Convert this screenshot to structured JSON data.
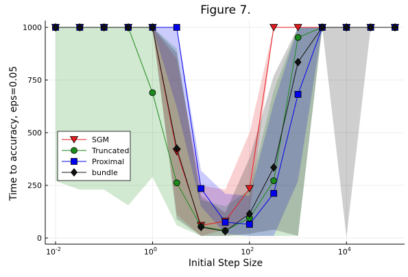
{
  "chart_data": {
    "type": "line",
    "title": "Figure 7.",
    "xlabel": "Initial Step Size",
    "ylabel": "Time to accuracy, eps=0.05",
    "xscale": "log",
    "xlim": [
      0.01,
      100000
    ],
    "ylim": [
      0,
      1000
    ],
    "x_ticks": [
      {
        "base": "10",
        "exp": "-2",
        "value": 0.01
      },
      {
        "base": "10",
        "exp": "0",
        "value": 1
      },
      {
        "base": "10",
        "exp": "2",
        "value": 100
      },
      {
        "base": "10",
        "exp": "4",
        "value": 10000
      }
    ],
    "y_ticks": [
      {
        "label": "0",
        "value": 0
      },
      {
        "label": "250",
        "value": 250
      },
      {
        "label": "500",
        "value": 500
      },
      {
        "label": "750",
        "value": 750
      },
      {
        "label": "1000",
        "value": 1000
      }
    ],
    "grid": true,
    "legend_position": "middle-left",
    "x": [
      0.01,
      0.0316,
      0.1,
      0.316,
      1,
      3.16,
      10,
      31.6,
      100,
      316,
      1000,
      3160,
      10000,
      31600,
      100000
    ],
    "series": [
      {
        "name": "SGM",
        "color": "#e41a1c",
        "marker": "triangle-down",
        "values": [
          1000,
          1000,
          1000,
          1000,
          1000,
          410,
          60,
          80,
          235,
          1000,
          1000,
          1000,
          1000,
          1000,
          1000
        ],
        "band_low": [
          1000,
          1000,
          1000,
          1000,
          1000,
          110,
          10,
          40,
          110,
          1000,
          1000,
          1000,
          1000,
          1000,
          1000
        ],
        "band_high": [
          1000,
          1000,
          1000,
          1000,
          1000,
          850,
          250,
          230,
          500,
          1000,
          1000,
          1000,
          1000,
          1000,
          1000
        ]
      },
      {
        "name": "Truncated",
        "color": "#1a8a1a",
        "marker": "circle",
        "values": [
          1000,
          1000,
          1000,
          1000,
          690,
          262,
          55,
          35,
          95,
          272,
          952,
          1000,
          1000,
          1000,
          1000
        ],
        "band_low": [
          270,
          230,
          230,
          155,
          290,
          60,
          10,
          10,
          10,
          10,
          10,
          1000,
          1000,
          1000,
          1000
        ],
        "band_high": [
          1000,
          1000,
          1000,
          1000,
          1000,
          900,
          180,
          150,
          230,
          700,
          1000,
          1000,
          1000,
          1000,
          1000
        ]
      },
      {
        "name": "Proximal",
        "color": "#0000ee",
        "marker": "square",
        "values": [
          1000,
          1000,
          1000,
          1000,
          1000,
          1000,
          235,
          75,
          65,
          212,
          682,
          1000,
          1000,
          1000,
          1000
        ],
        "band_low": [
          1000,
          1000,
          1000,
          1000,
          1000,
          620,
          150,
          20,
          10,
          10,
          270,
          1000,
          1000,
          1000,
          1000
        ],
        "band_high": [
          1000,
          1000,
          1000,
          1000,
          1000,
          1000,
          320,
          210,
          200,
          640,
          1000,
          1000,
          1000,
          1000,
          1000
        ]
      },
      {
        "name": "bundle",
        "color": "#111111",
        "marker": "diamond",
        "values": [
          1000,
          1000,
          1000,
          1000,
          1000,
          425,
          52,
          32,
          115,
          335,
          835,
          1000,
          1000,
          1000,
          1000
        ],
        "band_low": [
          1000,
          1000,
          1000,
          1000,
          1000,
          90,
          10,
          10,
          20,
          40,
          10,
          1000,
          5,
          1000,
          1000
        ],
        "band_high": [
          1000,
          1000,
          1000,
          1000,
          1000,
          880,
          200,
          120,
          380,
          770,
          1000,
          1000,
          1000,
          1000,
          1000
        ]
      }
    ]
  }
}
